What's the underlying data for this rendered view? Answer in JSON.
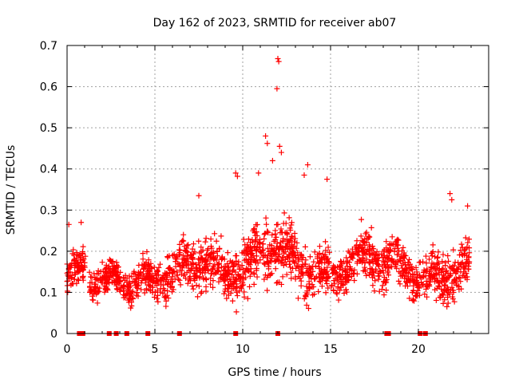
{
  "chart_data": {
    "type": "scatter",
    "title": "Day 162 of 2023, SRMTID for receiver ab07",
    "xlabel": "GPS time / hours",
    "ylabel": "SRMTID / TECUs",
    "xlim": [
      0,
      24
    ],
    "ylim": [
      0,
      0.7
    ],
    "grid": true,
    "marker": "+",
    "series_color": "#ff0000",
    "xticks": [
      {
        "value": 0,
        "label": "0"
      },
      {
        "value": 5,
        "label": "5"
      },
      {
        "value": 10,
        "label": "10"
      },
      {
        "value": 15,
        "label": "15"
      },
      {
        "value": 20,
        "label": "20"
      }
    ],
    "yticks": [
      {
        "value": 0,
        "label": "0"
      },
      {
        "value": 0.1,
        "label": "0.1"
      },
      {
        "value": 0.2,
        "label": "0.2"
      },
      {
        "value": 0.3,
        "label": "0.3"
      },
      {
        "value": 0.4,
        "label": "0.4"
      },
      {
        "value": 0.5,
        "label": "0.5"
      },
      {
        "value": 0.6,
        "label": "0.6"
      },
      {
        "value": 0.7,
        "label": "0.7"
      }
    ],
    "envelope": {
      "x": [
        0,
        1,
        2,
        3,
        4,
        5,
        6,
        7,
        8,
        9,
        10,
        11,
        12,
        13,
        14,
        15,
        16,
        17,
        18,
        19,
        20,
        21,
        22,
        23
      ],
      "center": [
        0.14,
        0.15,
        0.13,
        0.12,
        0.13,
        0.13,
        0.15,
        0.17,
        0.18,
        0.14,
        0.16,
        0.2,
        0.21,
        0.18,
        0.15,
        0.14,
        0.16,
        0.19,
        0.18,
        0.16,
        0.14,
        0.13,
        0.15,
        0.16
      ],
      "spread": [
        0.05,
        0.05,
        0.05,
        0.04,
        0.05,
        0.06,
        0.06,
        0.07,
        0.07,
        0.06,
        0.08,
        0.1,
        0.1,
        0.08,
        0.07,
        0.06,
        0.06,
        0.07,
        0.07,
        0.06,
        0.05,
        0.06,
        0.07,
        0.07
      ]
    },
    "points_per_hour": 85,
    "outliers": [
      {
        "x": 12.0,
        "y": 0.668
      },
      {
        "x": 12.05,
        "y": 0.661
      },
      {
        "x": 11.95,
        "y": 0.595
      },
      {
        "x": 11.3,
        "y": 0.48
      },
      {
        "x": 11.4,
        "y": 0.462
      },
      {
        "x": 12.1,
        "y": 0.455
      },
      {
        "x": 12.2,
        "y": 0.44
      },
      {
        "x": 10.9,
        "y": 0.39
      },
      {
        "x": 11.7,
        "y": 0.42
      },
      {
        "x": 9.6,
        "y": 0.39
      },
      {
        "x": 9.7,
        "y": 0.382
      },
      {
        "x": 13.7,
        "y": 0.41
      },
      {
        "x": 13.5,
        "y": 0.385
      },
      {
        "x": 14.8,
        "y": 0.375
      },
      {
        "x": 7.5,
        "y": 0.335
      },
      {
        "x": 21.8,
        "y": 0.34
      },
      {
        "x": 21.9,
        "y": 0.325
      },
      {
        "x": 22.8,
        "y": 0.31
      },
      {
        "x": 0.1,
        "y": 0.265
      },
      {
        "x": 0.8,
        "y": 0.27
      }
    ],
    "zero_points": [
      0.7,
      0.8,
      0.9,
      2.4,
      2.8,
      3.4,
      4.6,
      6.4,
      9.6,
      12.0,
      18.2,
      18.3,
      20.1,
      20.4
    ]
  }
}
